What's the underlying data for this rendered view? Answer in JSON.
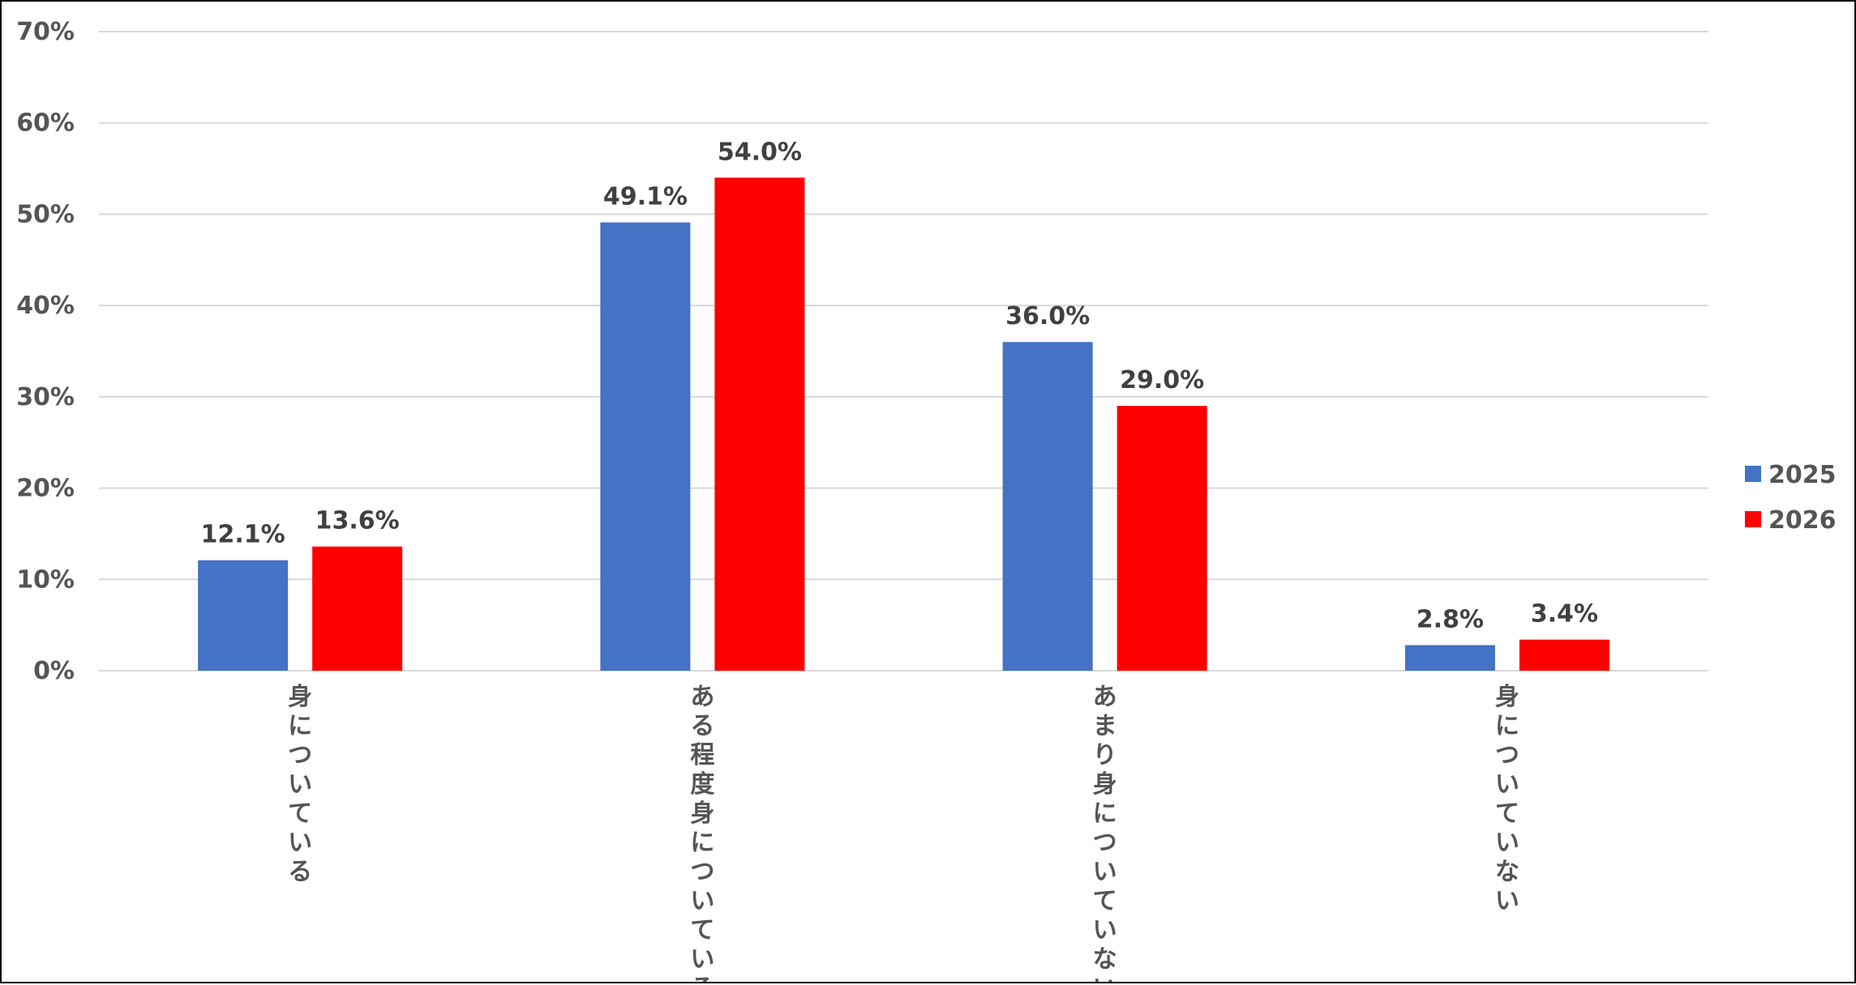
{
  "chart_data": {
    "type": "bar",
    "title": "",
    "xlabel": "",
    "ylabel": "",
    "categories": [
      "身についている",
      "ある程度身についている",
      "あまり身についていない",
      "身についていない"
    ],
    "series": [
      {
        "name": "2025",
        "values": [
          12.1,
          49.1,
          36.0,
          2.8
        ],
        "color": "#4472C4"
      },
      {
        "name": "2026",
        "values": [
          13.6,
          54.0,
          29.0,
          3.4
        ],
        "color": "#FF0000"
      }
    ],
    "data_labels": [
      [
        "12.1%",
        "49.1%",
        "36.0%",
        "2.8%"
      ],
      [
        "13.6%",
        "54.0%",
        "29.0%",
        "3.4%"
      ]
    ],
    "y_ticks": [
      "0%",
      "10%",
      "20%",
      "30%",
      "40%",
      "50%",
      "60%",
      "70%"
    ],
    "ylim": [
      0,
      70
    ],
    "grid": true,
    "legend_position": "right",
    "category_label_orientation": "vertical",
    "gridline_color": "#D9D9D9"
  }
}
